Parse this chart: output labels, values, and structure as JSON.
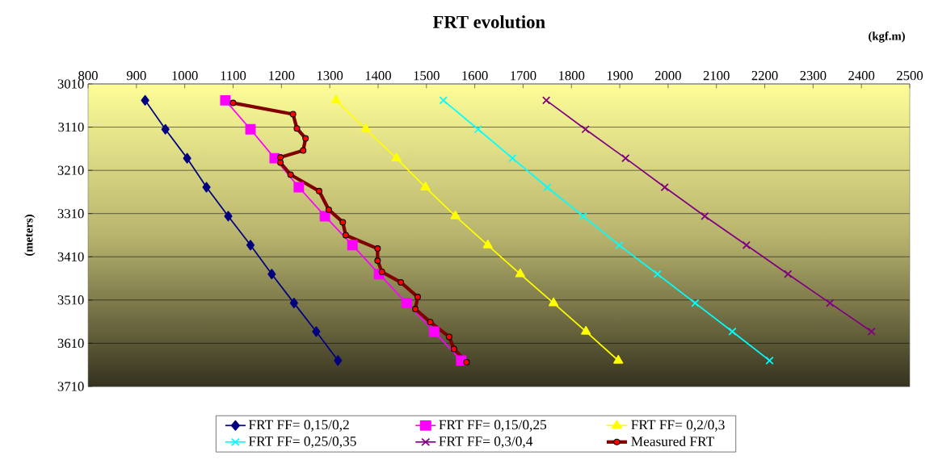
{
  "chart_data": {
    "type": "line",
    "title": "FRT evolution",
    "xlabel": "(kgf.m)",
    "ylabel": "(meters)",
    "xlim": [
      800,
      2500
    ],
    "xticks": [
      800,
      900,
      1000,
      1100,
      1200,
      1300,
      1400,
      1500,
      1600,
      1700,
      1800,
      1900,
      2000,
      2100,
      2200,
      2300,
      2400,
      2500
    ],
    "ylim": [
      3710,
      3010
    ],
    "yticks": [
      3010,
      3110,
      3210,
      3310,
      3410,
      3510,
      3610,
      3710
    ],
    "grid": "y",
    "legend": "bottom",
    "line_style": "solid",
    "series": [
      {
        "name": "FRT FF= 0,15/0,2",
        "color": "#000080",
        "marker": "diamond",
        "x": [
          918,
          960,
          1005,
          1045,
          1090,
          1136,
          1180,
          1226,
          1272,
          1317
        ],
        "values": [
          3048,
          3115,
          3182,
          3249,
          3316,
          3383,
          3450,
          3517,
          3583,
          3650
        ]
      },
      {
        "name": "FRT FF= 0,15/0,25",
        "color": "#ff00ff",
        "marker": "square",
        "x": [
          1084,
          1136,
          1186,
          1236,
          1290,
          1347,
          1402,
          1459,
          1516,
          1572
        ],
        "values": [
          3048,
          3115,
          3182,
          3249,
          3316,
          3383,
          3450,
          3517,
          3583,
          3650
        ]
      },
      {
        "name": "FRT FF= 0,2/0,3",
        "color": "#ffff00",
        "marker": "triangle",
        "x": [
          1313,
          1375,
          1438,
          1498,
          1560,
          1627,
          1694,
          1763,
          1830,
          1897
        ],
        "values": [
          3048,
          3115,
          3182,
          3249,
          3316,
          3383,
          3450,
          3517,
          3583,
          3650
        ]
      },
      {
        "name": "FRT FF= 0,25/0,35",
        "color": "#00ffff",
        "marker": "cross",
        "x": [
          1535,
          1607,
          1678,
          1750,
          1824,
          1899,
          1978,
          2056,
          2133,
          2210
        ],
        "values": [
          3048,
          3115,
          3182,
          3249,
          3316,
          3383,
          3450,
          3517,
          3583,
          3650
        ]
      },
      {
        "name": "FRT FF= 0,3/0,4",
        "color": "#800080",
        "marker": "cross",
        "x": [
          1748,
          1829,
          1912,
          1993,
          2076,
          2162,
          2248,
          2335,
          2421
        ],
        "values": [
          3048,
          3115,
          3182,
          3249,
          3316,
          3383,
          3450,
          3517,
          3583
        ]
      },
      {
        "name": "Measured FRT",
        "color": "#800000",
        "marker": "circle",
        "x": [
          1100,
          1224,
          1232,
          1250,
          1245,
          1198,
          1198,
          1219,
          1278,
          1298,
          1327,
          1333,
          1399,
          1399,
          1408,
          1447,
          1482,
          1477,
          1508,
          1547,
          1557,
          1583
        ],
        "values": [
          3054,
          3080,
          3113,
          3136,
          3164,
          3180,
          3192,
          3220,
          3258,
          3301,
          3330,
          3360,
          3391,
          3419,
          3445,
          3469,
          3503,
          3531,
          3561,
          3595,
          3623,
          3654
        ]
      }
    ]
  }
}
